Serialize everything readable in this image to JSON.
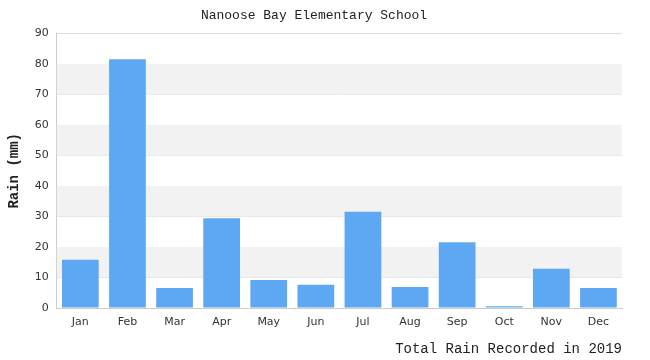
{
  "chart_data": {
    "type": "bar",
    "title": "Nanoose Bay Elementary School",
    "xlabel": "Total Rain Recorded in 2019",
    "ylabel": "Rain (mm)",
    "categories": [
      "Jan",
      "Feb",
      "Mar",
      "Apr",
      "May",
      "Jun",
      "Jul",
      "Aug",
      "Sep",
      "Oct",
      "Nov",
      "Dec"
    ],
    "values": [
      15.8,
      81.6,
      6.6,
      29.4,
      9.2,
      7.6,
      31.6,
      6.9,
      21.6,
      0.6,
      12.9,
      6.6
    ],
    "color": "#5ea8f3",
    "ylim": [
      0,
      90
    ],
    "yticks": [
      0,
      10,
      20,
      30,
      40,
      50,
      60,
      70,
      80,
      90
    ],
    "grid": true
  }
}
